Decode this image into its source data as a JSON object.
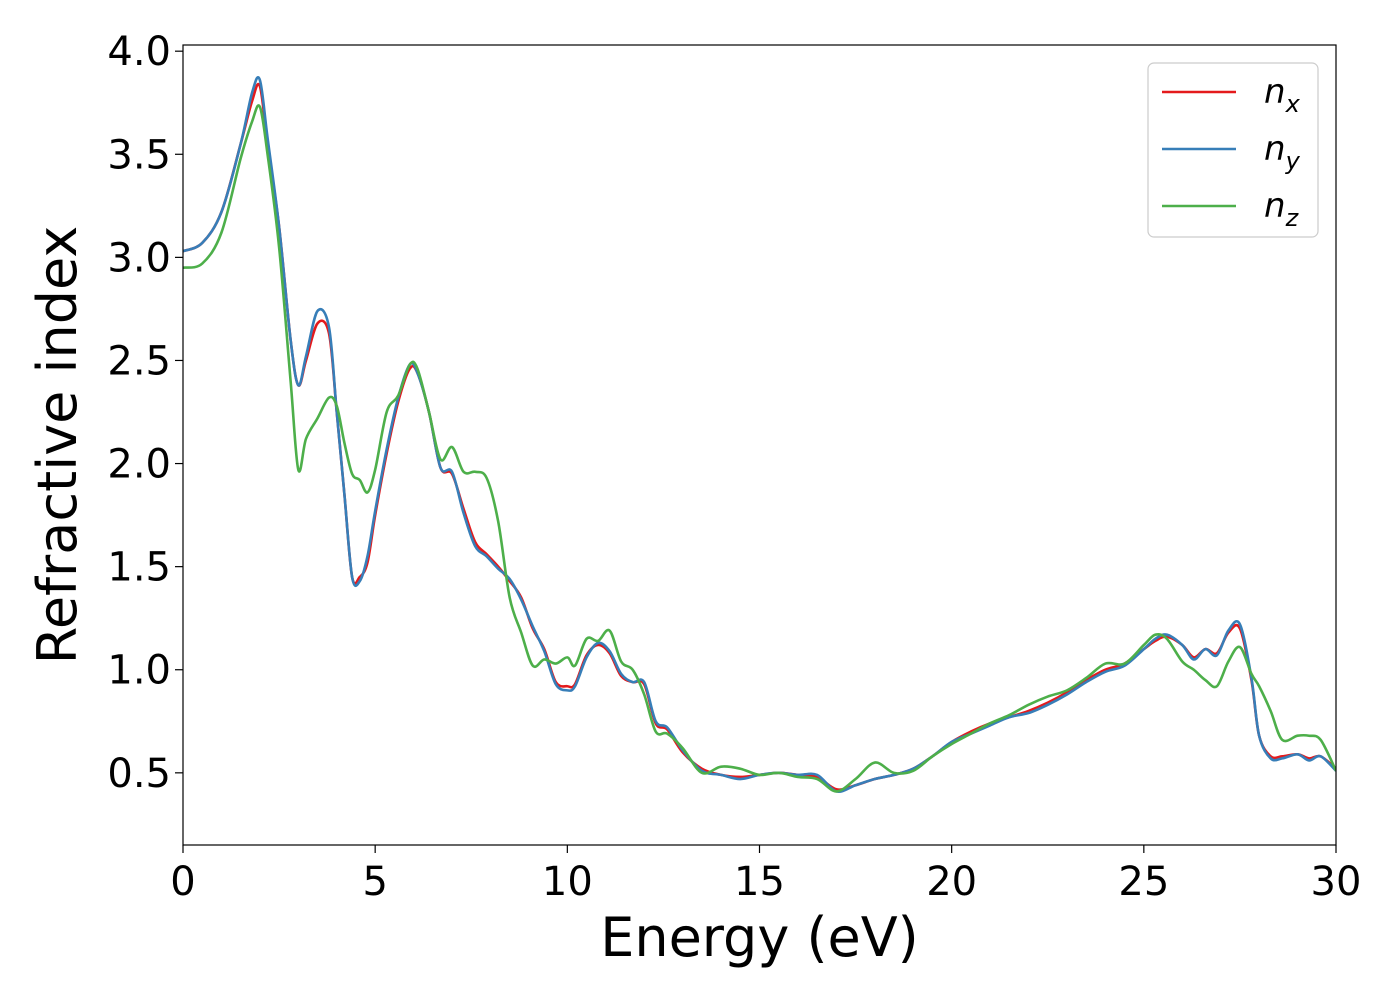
{
  "chart_data": {
    "type": "line",
    "title": "",
    "xlabel": "Energy (eV)",
    "ylabel": "Refractive index",
    "xlim": [
      0,
      30
    ],
    "ylim": [
      0.15,
      4.03
    ],
    "xticks": [
      0,
      5,
      10,
      15,
      20,
      25,
      30
    ],
    "xtick_labels": [
      "0",
      "5",
      "10",
      "15",
      "20",
      "25",
      "30"
    ],
    "yticks": [
      0.5,
      1.0,
      1.5,
      2.0,
      2.5,
      3.0,
      3.5,
      4.0
    ],
    "ytick_labels": [
      "0.5",
      "1.0",
      "1.5",
      "2.0",
      "2.5",
      "3.0",
      "3.5",
      "4.0"
    ],
    "grid": false,
    "legend_position": "top-right",
    "series": [
      {
        "name": "n",
        "sub": "x",
        "color": "#e41a1c",
        "x": [
          0,
          0.5,
          1.0,
          1.5,
          1.8,
          2.0,
          2.2,
          2.5,
          2.8,
          3.0,
          3.2,
          3.5,
          3.8,
          4.0,
          4.2,
          4.4,
          4.6,
          4.8,
          5.0,
          5.3,
          5.6,
          5.9,
          6.1,
          6.4,
          6.7,
          7.0,
          7.3,
          7.6,
          7.9,
          8.2,
          8.5,
          8.8,
          9.1,
          9.4,
          9.7,
          10.0,
          10.2,
          10.5,
          10.8,
          11.1,
          11.4,
          11.7,
          12.0,
          12.3,
          12.6,
          13.0,
          13.5,
          14.0,
          14.5,
          15.0,
          15.5,
          16.0,
          16.5,
          17.0,
          17.5,
          18.0,
          18.5,
          19.0,
          19.5,
          20.0,
          20.5,
          21.0,
          21.5,
          22.0,
          22.5,
          23.0,
          23.5,
          24.0,
          24.5,
          25.0,
          25.3,
          25.6,
          26.0,
          26.3,
          26.6,
          26.9,
          27.2,
          27.5,
          27.8,
          28.0,
          28.3,
          28.6,
          29.0,
          29.3,
          29.6,
          30.0
        ],
        "y": [
          3.03,
          3.07,
          3.22,
          3.55,
          3.76,
          3.83,
          3.55,
          3.15,
          2.6,
          2.38,
          2.5,
          2.68,
          2.63,
          2.25,
          1.85,
          1.45,
          1.45,
          1.52,
          1.75,
          2.05,
          2.3,
          2.46,
          2.44,
          2.25,
          1.98,
          1.95,
          1.78,
          1.62,
          1.56,
          1.5,
          1.43,
          1.35,
          1.2,
          1.1,
          0.94,
          0.92,
          0.93,
          1.07,
          1.12,
          1.08,
          0.97,
          0.94,
          0.93,
          0.74,
          0.71,
          0.6,
          0.52,
          0.49,
          0.48,
          0.49,
          0.5,
          0.49,
          0.48,
          0.42,
          0.44,
          0.47,
          0.49,
          0.52,
          0.58,
          0.65,
          0.7,
          0.74,
          0.77,
          0.8,
          0.84,
          0.89,
          0.95,
          1.0,
          1.03,
          1.1,
          1.14,
          1.16,
          1.12,
          1.06,
          1.1,
          1.08,
          1.18,
          1.2,
          0.95,
          0.68,
          0.58,
          0.58,
          0.59,
          0.57,
          0.58,
          0.52
        ]
      },
      {
        "name": "n",
        "sub": "y",
        "color": "#377eb8",
        "x": [
          0,
          0.5,
          1.0,
          1.5,
          1.8,
          2.0,
          2.2,
          2.5,
          2.8,
          3.0,
          3.2,
          3.5,
          3.8,
          4.0,
          4.2,
          4.4,
          4.6,
          4.8,
          5.0,
          5.3,
          5.6,
          5.9,
          6.1,
          6.4,
          6.7,
          7.0,
          7.3,
          7.6,
          7.9,
          8.2,
          8.5,
          8.8,
          9.1,
          9.4,
          9.7,
          10.0,
          10.2,
          10.5,
          10.8,
          11.1,
          11.4,
          11.7,
          12.0,
          12.3,
          12.6,
          13.0,
          13.5,
          14.0,
          14.5,
          15.0,
          15.5,
          16.0,
          16.5,
          17.0,
          17.5,
          18.0,
          18.5,
          19.0,
          19.5,
          20.0,
          20.5,
          21.0,
          21.5,
          22.0,
          22.5,
          23.0,
          23.5,
          24.0,
          24.5,
          25.0,
          25.3,
          25.6,
          26.0,
          26.3,
          26.6,
          26.9,
          27.2,
          27.5,
          27.8,
          28.0,
          28.3,
          28.6,
          29.0,
          29.3,
          29.6,
          30.0
        ],
        "y": [
          3.03,
          3.07,
          3.22,
          3.55,
          3.8,
          3.86,
          3.58,
          3.15,
          2.6,
          2.38,
          2.52,
          2.74,
          2.66,
          2.25,
          1.85,
          1.45,
          1.43,
          1.55,
          1.77,
          2.07,
          2.32,
          2.48,
          2.44,
          2.25,
          1.98,
          1.96,
          1.76,
          1.6,
          1.55,
          1.49,
          1.44,
          1.34,
          1.21,
          1.09,
          0.93,
          0.9,
          0.92,
          1.06,
          1.13,
          1.09,
          0.98,
          0.94,
          0.94,
          0.75,
          0.72,
          0.61,
          0.51,
          0.49,
          0.47,
          0.49,
          0.5,
          0.49,
          0.49,
          0.41,
          0.44,
          0.47,
          0.49,
          0.52,
          0.58,
          0.65,
          0.69,
          0.73,
          0.77,
          0.79,
          0.83,
          0.88,
          0.94,
          0.99,
          1.02,
          1.1,
          1.15,
          1.17,
          1.12,
          1.05,
          1.1,
          1.07,
          1.19,
          1.22,
          0.96,
          0.68,
          0.57,
          0.57,
          0.59,
          0.56,
          0.58,
          0.51
        ]
      },
      {
        "name": "n",
        "sub": "z",
        "color": "#4daf4a",
        "x": [
          0,
          0.5,
          1.0,
          1.5,
          1.8,
          2.0,
          2.2,
          2.5,
          2.8,
          3.0,
          3.2,
          3.5,
          3.8,
          4.0,
          4.2,
          4.4,
          4.6,
          4.8,
          5.0,
          5.3,
          5.6,
          5.9,
          6.1,
          6.4,
          6.7,
          7.0,
          7.3,
          7.6,
          7.9,
          8.2,
          8.5,
          8.8,
          9.1,
          9.4,
          9.7,
          10.0,
          10.2,
          10.5,
          10.8,
          11.1,
          11.4,
          11.7,
          12.0,
          12.3,
          12.6,
          13.0,
          13.5,
          14.0,
          14.5,
          15.0,
          15.5,
          16.0,
          16.5,
          17.0,
          17.5,
          18.0,
          18.5,
          19.0,
          19.5,
          20.0,
          20.5,
          21.0,
          21.5,
          22.0,
          22.5,
          23.0,
          23.5,
          24.0,
          24.5,
          25.0,
          25.3,
          25.6,
          26.0,
          26.3,
          26.6,
          26.9,
          27.2,
          27.5,
          27.8,
          28.0,
          28.3,
          28.6,
          29.0,
          29.3,
          29.6,
          30.0
        ],
        "y": [
          2.95,
          2.97,
          3.12,
          3.48,
          3.66,
          3.73,
          3.5,
          3.05,
          2.4,
          1.97,
          2.12,
          2.22,
          2.32,
          2.28,
          2.1,
          1.95,
          1.92,
          1.86,
          1.97,
          2.25,
          2.33,
          2.48,
          2.46,
          2.25,
          2.02,
          2.08,
          1.96,
          1.96,
          1.93,
          1.72,
          1.35,
          1.18,
          1.02,
          1.05,
          1.03,
          1.06,
          1.02,
          1.15,
          1.14,
          1.19,
          1.04,
          1.0,
          0.88,
          0.7,
          0.69,
          0.62,
          0.5,
          0.53,
          0.52,
          0.49,
          0.5,
          0.48,
          0.47,
          0.41,
          0.47,
          0.55,
          0.5,
          0.51,
          0.58,
          0.64,
          0.69,
          0.74,
          0.78,
          0.83,
          0.87,
          0.9,
          0.96,
          1.03,
          1.03,
          1.12,
          1.17,
          1.15,
          1.04,
          1.0,
          0.95,
          0.92,
          1.04,
          1.11,
          0.98,
          0.92,
          0.8,
          0.66,
          0.68,
          0.68,
          0.66,
          0.51
        ]
      }
    ]
  }
}
